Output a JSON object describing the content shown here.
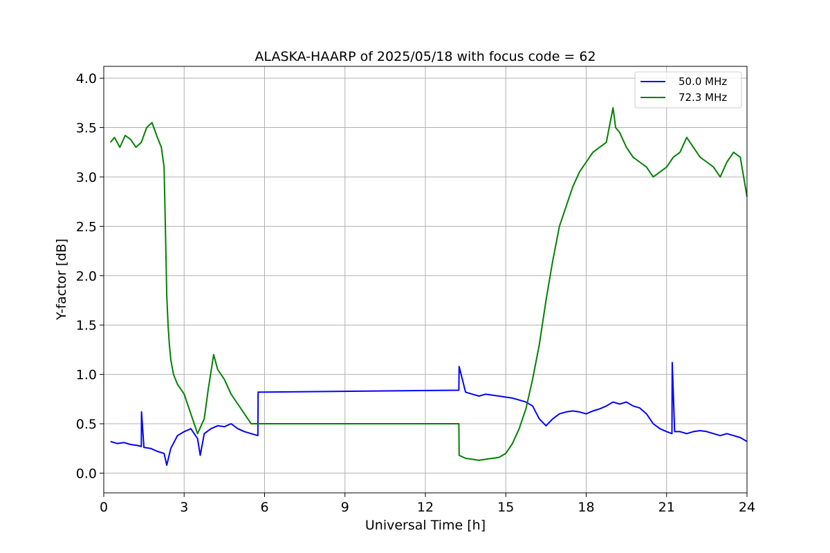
{
  "chart_data": {
    "type": "line",
    "title": "ALASKA-HAARP of 2025/05/18 with focus code = 62",
    "xlabel": "Universal Time [h]",
    "ylabel": "Y-factor [dB]",
    "xlim": [
      0,
      24
    ],
    "ylim": [
      -0.2,
      4.12
    ],
    "xticks": [
      0,
      3,
      6,
      9,
      12,
      15,
      18,
      21,
      24
    ],
    "xtick_labels": [
      "0",
      "3",
      "6",
      "9",
      "12",
      "15",
      "18",
      "21",
      "24"
    ],
    "yticks": [
      0.0,
      0.5,
      1.0,
      1.5,
      2.0,
      2.5,
      3.0,
      3.5,
      4.0
    ],
    "ytick_labels": [
      "0.0",
      "0.5",
      "1.0",
      "1.5",
      "2.0",
      "2.5",
      "3.0",
      "3.5",
      "4.0"
    ],
    "grid": true,
    "legend_position": "top-right",
    "series": [
      {
        "name": "50.0 MHz",
        "color": "#0000ff",
        "x": [
          0.25,
          0.5,
          0.75,
          1.0,
          1.25,
          1.4,
          1.41,
          1.5,
          1.75,
          2.0,
          2.25,
          2.35,
          2.5,
          2.75,
          3.0,
          3.25,
          3.5,
          3.6,
          3.75,
          4.0,
          4.25,
          4.5,
          4.75,
          5.0,
          5.25,
          5.5,
          5.75,
          5.76,
          13.25,
          13.26,
          13.5,
          13.75,
          14.0,
          14.25,
          14.5,
          14.75,
          15.0,
          15.25,
          15.5,
          15.75,
          16.0,
          16.25,
          16.5,
          16.75,
          17.0,
          17.25,
          17.5,
          17.75,
          18.0,
          18.25,
          18.5,
          18.75,
          19.0,
          19.25,
          19.5,
          19.75,
          20.0,
          20.25,
          20.5,
          20.75,
          21.0,
          21.2,
          21.21,
          21.3,
          21.5,
          21.75,
          22.0,
          22.25,
          22.5,
          22.75,
          23.0,
          23.25,
          23.5,
          23.75,
          24.0
        ],
        "y": [
          0.32,
          0.3,
          0.31,
          0.29,
          0.28,
          0.27,
          0.62,
          0.26,
          0.25,
          0.22,
          0.2,
          0.08,
          0.25,
          0.38,
          0.42,
          0.45,
          0.35,
          0.18,
          0.4,
          0.45,
          0.48,
          0.47,
          0.5,
          0.45,
          0.42,
          0.4,
          0.38,
          0.82,
          0.84,
          1.08,
          0.82,
          0.8,
          0.78,
          0.8,
          0.79,
          0.78,
          0.77,
          0.76,
          0.74,
          0.72,
          0.68,
          0.55,
          0.48,
          0.55,
          0.6,
          0.62,
          0.63,
          0.62,
          0.6,
          0.63,
          0.65,
          0.68,
          0.72,
          0.7,
          0.72,
          0.68,
          0.66,
          0.6,
          0.5,
          0.45,
          0.42,
          0.4,
          1.12,
          0.42,
          0.42,
          0.4,
          0.42,
          0.43,
          0.42,
          0.4,
          0.38,
          0.4,
          0.38,
          0.36,
          0.32
        ]
      },
      {
        "name": "72.3 MHz",
        "color": "#008000",
        "x": [
          0.25,
          0.4,
          0.6,
          0.8,
          1.0,
          1.2,
          1.4,
          1.6,
          1.8,
          2.0,
          2.15,
          2.25,
          2.3,
          2.35,
          2.4,
          2.45,
          2.5,
          2.6,
          2.75,
          3.0,
          3.25,
          3.5,
          3.75,
          3.9,
          4.1,
          4.25,
          4.5,
          4.75,
          5.0,
          5.25,
          5.5,
          5.75,
          13.25,
          13.26,
          13.5,
          13.75,
          14.0,
          14.25,
          14.5,
          14.75,
          15.0,
          15.25,
          15.5,
          15.75,
          16.0,
          16.25,
          16.5,
          16.75,
          17.0,
          17.25,
          17.5,
          17.75,
          18.0,
          18.25,
          18.5,
          18.75,
          19.0,
          19.1,
          19.25,
          19.5,
          19.75,
          20.0,
          20.25,
          20.5,
          20.75,
          21.0,
          21.25,
          21.5,
          21.75,
          22.0,
          22.25,
          22.5,
          22.75,
          23.0,
          23.25,
          23.5,
          23.75,
          24.0
        ],
        "y": [
          3.35,
          3.4,
          3.3,
          3.42,
          3.38,
          3.3,
          3.35,
          3.5,
          3.55,
          3.4,
          3.3,
          3.1,
          2.5,
          1.8,
          1.5,
          1.3,
          1.15,
          1.0,
          0.9,
          0.8,
          0.6,
          0.4,
          0.55,
          0.85,
          1.2,
          1.05,
          0.95,
          0.8,
          0.7,
          0.6,
          0.5,
          0.5,
          0.5,
          0.18,
          0.15,
          0.14,
          0.13,
          0.14,
          0.15,
          0.16,
          0.2,
          0.3,
          0.45,
          0.65,
          0.95,
          1.3,
          1.75,
          2.15,
          2.5,
          2.7,
          2.9,
          3.05,
          3.15,
          3.25,
          3.3,
          3.35,
          3.7,
          3.5,
          3.45,
          3.3,
          3.2,
          3.15,
          3.1,
          3.0,
          3.05,
          3.1,
          3.2,
          3.25,
          3.4,
          3.3,
          3.2,
          3.15,
          3.1,
          3.0,
          3.15,
          3.25,
          3.2,
          2.8
        ]
      }
    ]
  }
}
